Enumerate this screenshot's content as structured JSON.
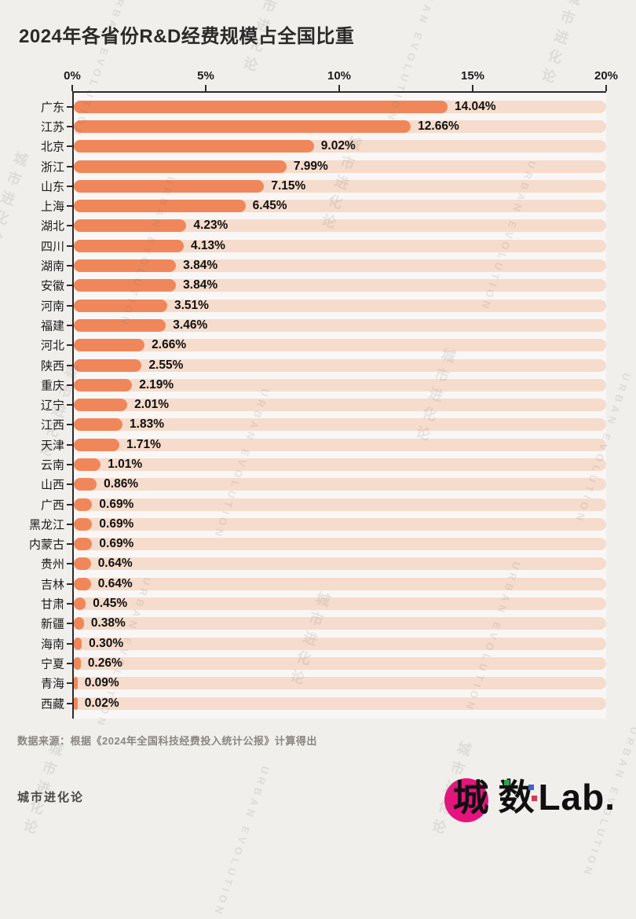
{
  "page": {
    "title": "2024年各省份R&D经费规模占全国比重",
    "source": "数据来源：根据《2024年全国科技经费投入统计公报》计算得出",
    "footer_left": "城市进化论",
    "logo": {
      "char1": "城",
      "char2": "数",
      "suffix": "Lab."
    },
    "watermark": {
      "cn": "城市进化论",
      "en": "URBAN EVOLUTION"
    }
  },
  "chart_data": {
    "type": "bar",
    "orientation": "horizontal",
    "title": "2024年各省份R&D经费规模占全国比重",
    "xlabel": "",
    "ylabel": "",
    "xlim": [
      0,
      20
    ],
    "x_ticks": [
      "0%",
      "5%",
      "10%",
      "15%",
      "20%"
    ],
    "grid": false,
    "bar_color": "#f0875a",
    "track_color": "#f6dccc",
    "axis_color": "#2b2b2b",
    "categories": [
      "广东",
      "江苏",
      "北京",
      "浙江",
      "山东",
      "上海",
      "湖北",
      "四川",
      "湖南",
      "安徽",
      "河南",
      "福建",
      "河北",
      "陕西",
      "重庆",
      "辽宁",
      "江西",
      "天津",
      "云南",
      "山西",
      "广西",
      "黑龙江",
      "内蒙古",
      "贵州",
      "吉林",
      "甘肃",
      "新疆",
      "海南",
      "宁夏",
      "青海",
      "西藏"
    ],
    "values": [
      14.04,
      12.66,
      9.02,
      7.99,
      7.15,
      6.45,
      4.23,
      4.13,
      3.84,
      3.84,
      3.51,
      3.46,
      2.66,
      2.55,
      2.19,
      2.01,
      1.83,
      1.71,
      1.01,
      0.86,
      0.69,
      0.69,
      0.69,
      0.64,
      0.64,
      0.45,
      0.38,
      0.3,
      0.26,
      0.09,
      0.02
    ],
    "value_labels": [
      "14.04%",
      "12.66%",
      "9.02%",
      "7.99%",
      "7.15%",
      "6.45%",
      "4.23%",
      "4.13%",
      "3.84%",
      "3.84%",
      "3.51%",
      "3.46%",
      "2.66%",
      "2.55%",
      "2.19%",
      "2.01%",
      "1.83%",
      "1.71%",
      "1.01%",
      "0.86%",
      "0.69%",
      "0.69%",
      "0.69%",
      "0.64%",
      "0.64%",
      "0.45%",
      "0.38%",
      "0.30%",
      "0.26%",
      "0.09%",
      "0.02%"
    ]
  }
}
